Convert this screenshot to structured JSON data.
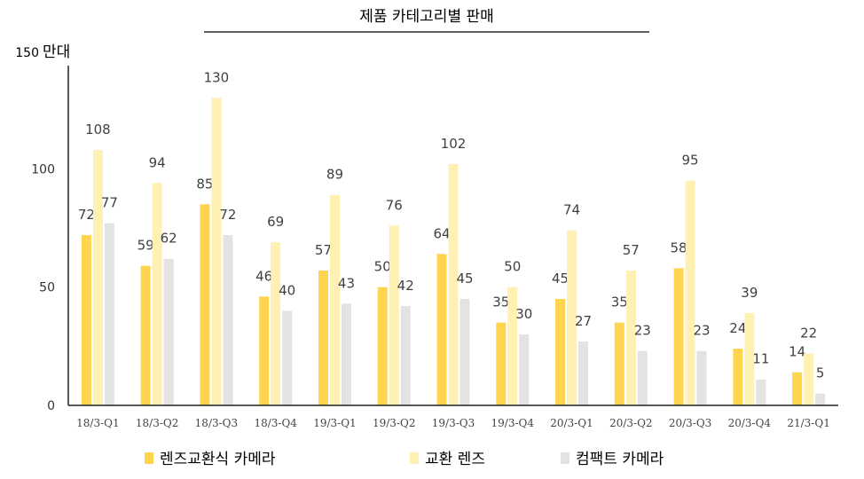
{
  "chart_data": {
    "type": "bar",
    "title": "제품 카테고리별 판매",
    "ylabel": "",
    "y_unit": {
      "number": "150",
      "text": "만대"
    },
    "ylim": [
      0,
      150
    ],
    "yticks": [
      0,
      50,
      100
    ],
    "grid": false,
    "legend_position": "bottom",
    "categories": [
      "18/3-Q1",
      "18/3-Q2",
      "18/3-Q3",
      "18/3-Q4",
      "19/3-Q1",
      "19/3-Q2",
      "19/3-Q3",
      "19/3-Q4",
      "20/3-Q1",
      "20/3-Q2",
      "20/3-Q3",
      "20/3-Q4",
      "21/3-Q1"
    ],
    "series": [
      {
        "name": "렌즈교환식 카메라",
        "color": "#FFD54F",
        "values": [
          72,
          59,
          85,
          46,
          57,
          50,
          64,
          35,
          45,
          35,
          58,
          24,
          14
        ]
      },
      {
        "name": "교환 렌즈",
        "color": "#FFF0B3",
        "values": [
          108,
          94,
          130,
          69,
          89,
          76,
          102,
          50,
          74,
          57,
          95,
          39,
          22
        ]
      },
      {
        "name": "컴팩트 카메라",
        "color": "#E3E3E3",
        "values": [
          77,
          62,
          72,
          40,
          43,
          42,
          45,
          30,
          27,
          23,
          23,
          11,
          5
        ]
      }
    ]
  }
}
